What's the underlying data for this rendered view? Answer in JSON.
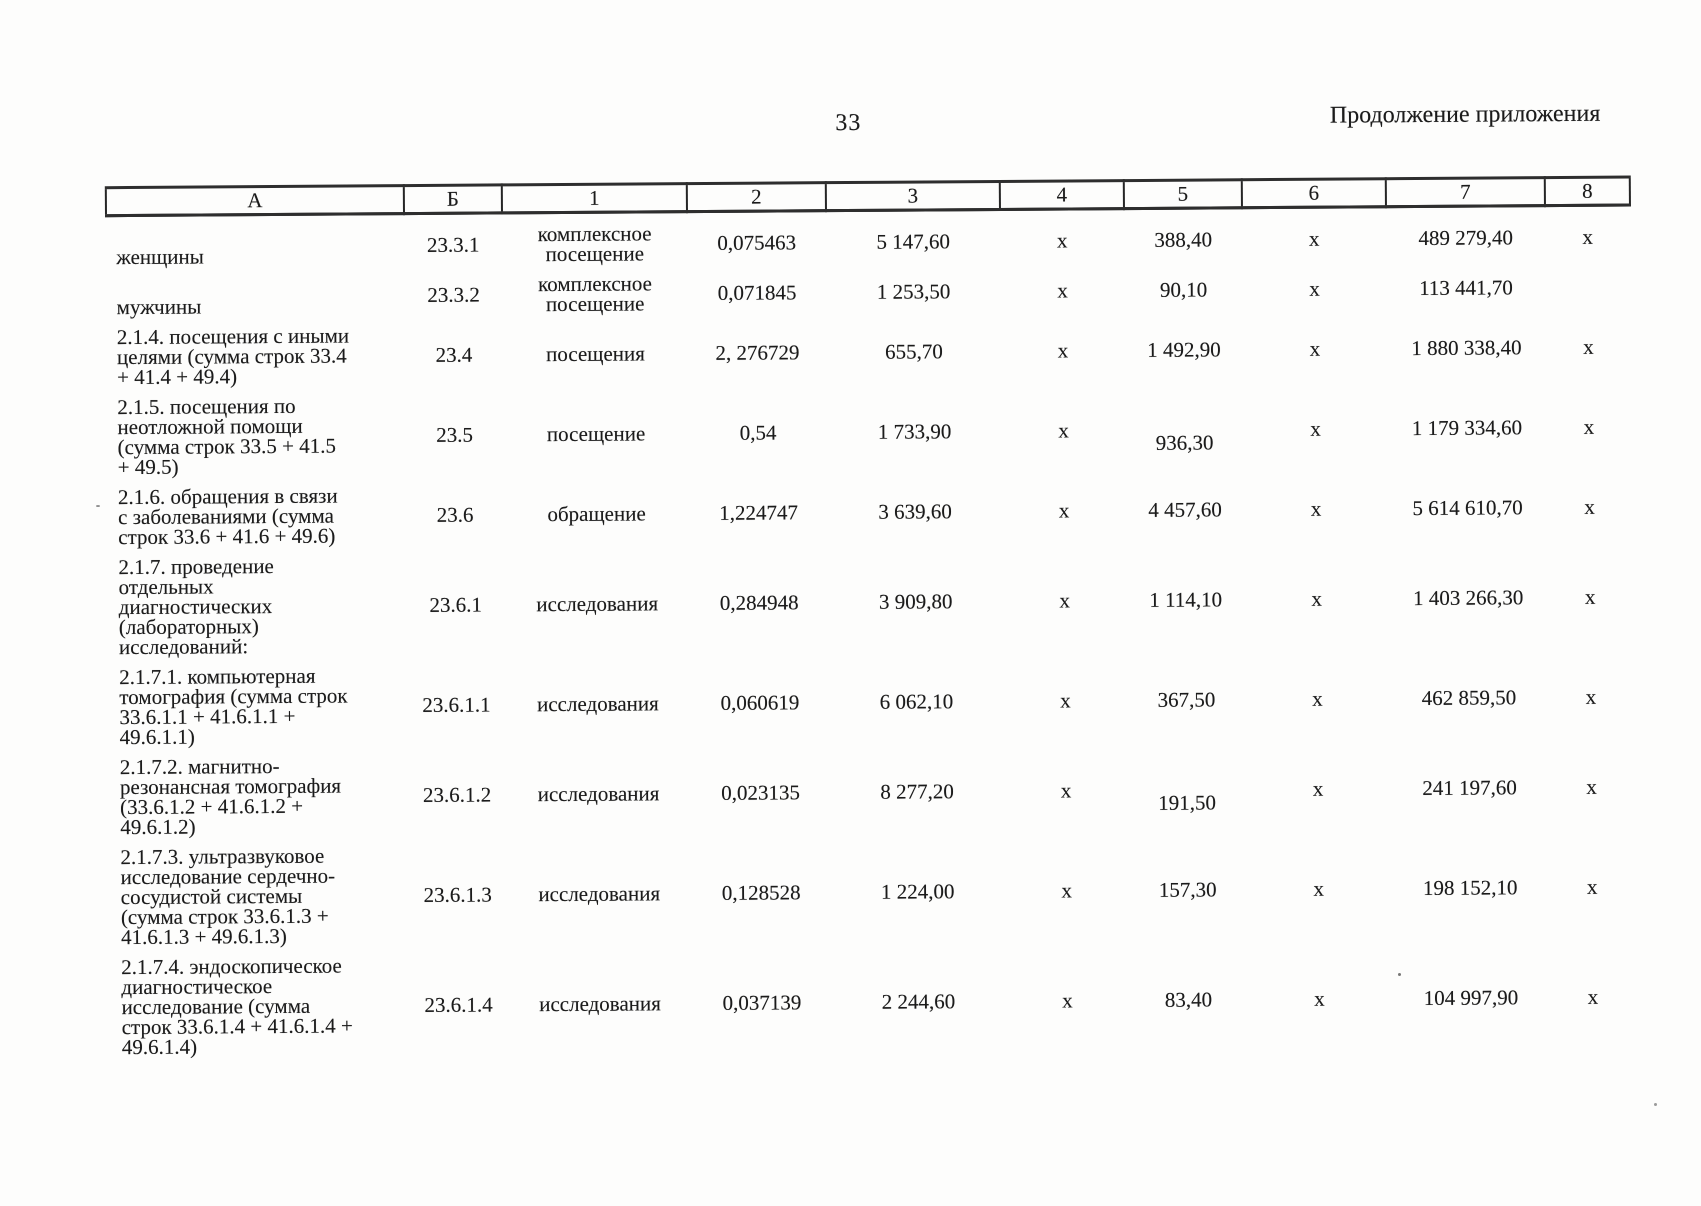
{
  "page": {
    "number": "33",
    "continuation_note": "Продолжение приложения",
    "ink_color": "#1b1b1b",
    "paper_color": "#fdfdfc"
  },
  "table": {
    "column_headers": [
      "А",
      "Б",
      "1",
      "2",
      "3",
      "4",
      "5",
      "6",
      "7",
      "8"
    ],
    "rows": [
      {
        "cells": [
          "женщины",
          "23.3.1",
          "комплексное\nпосещение",
          "0,075463",
          "5 147,60",
          "х",
          "388,40",
          "х",
          "489 279,40",
          "х"
        ]
      },
      {
        "cells": [
          "мужчины",
          "23.3.2",
          "комплексное\nпосещение",
          "0,071845",
          "1 253,50",
          "х",
          "90,10",
          "х",
          "113 441,70",
          ""
        ]
      },
      {
        "cells": [
          "2.1.4. посещения с иными\nцелями (сумма строк 33.4\n+ 41.4 + 49.4)",
          "23.4",
          "посещения",
          "2, 276729",
          "655,70",
          "х",
          "1 492,90",
          "х",
          "1 880 338,40",
          "х"
        ]
      },
      {
        "cells": [
          "2.1.5. посещения по\nнеотложной помощи\n(сумма строк 33.5 + 41.5\n+ 49.5)",
          "23.5",
          "посещение",
          "0,54",
          "1 733,90",
          "х",
          "936,30",
          "х",
          "1 179 334,60",
          "х"
        ]
      },
      {
        "cells": [
          "2.1.6. обращения в связи\nс заболеваниями (сумма\nстрок 33.6 + 41.6 + 49.6)",
          "23.6",
          "обращение",
          "1,224747",
          "3 639,60",
          "х",
          "4 457,60",
          "х",
          "5 614 610,70",
          "х"
        ]
      },
      {
        "cells": [
          "2.1.7. проведение\nотдельных\nдиагностических\n(лабораторных)\nисследований:",
          "23.6.1",
          "исследования",
          "0,284948",
          "3 909,80",
          "х",
          "1 114,10",
          "х",
          "1 403 266,30",
          "х"
        ]
      },
      {
        "cells": [
          "2.1.7.1. компьютерная\nтомография (сумма строк\n33.6.1.1 + 41.6.1.1 +\n49.6.1.1)",
          "23.6.1.1",
          "исследования",
          "0,060619",
          "6 062,10",
          "х",
          "367,50",
          "х",
          "462 859,50",
          "х"
        ]
      },
      {
        "cells": [
          "2.1.7.2. магнитно-\nрезонансная томография\n(33.6.1.2 + 41.6.1.2 +\n49.6.1.2)",
          "23.6.1.2",
          "исследования",
          "0,023135",
          "8 277,20",
          "х",
          "191,50",
          "х",
          "241 197,60",
          "х"
        ]
      },
      {
        "cells": [
          "2.1.7.3. ультразвуковое\nисследование сердечно-\nсосудистой системы\n(сумма строк 33.6.1.3 +\n41.6.1.3 + 49.6.1.3)",
          "23.6.1.3",
          "исследования",
          "0,128528",
          "1 224,00",
          "х",
          "157,30",
          "х",
          "198 152,10",
          "х"
        ]
      },
      {
        "cells": [
          "2.1.7.4. эндоскопическое\nдиагностическое\nисследование (сумма\nстрок 33.6.1.4 + 41.6.1.4 +\n49.6.1.4)",
          "23.6.1.4",
          "исследования",
          "0,037139",
          "2 244,60",
          "х",
          "83,40",
          "х",
          "104 997,90",
          "х"
        ]
      }
    ]
  }
}
